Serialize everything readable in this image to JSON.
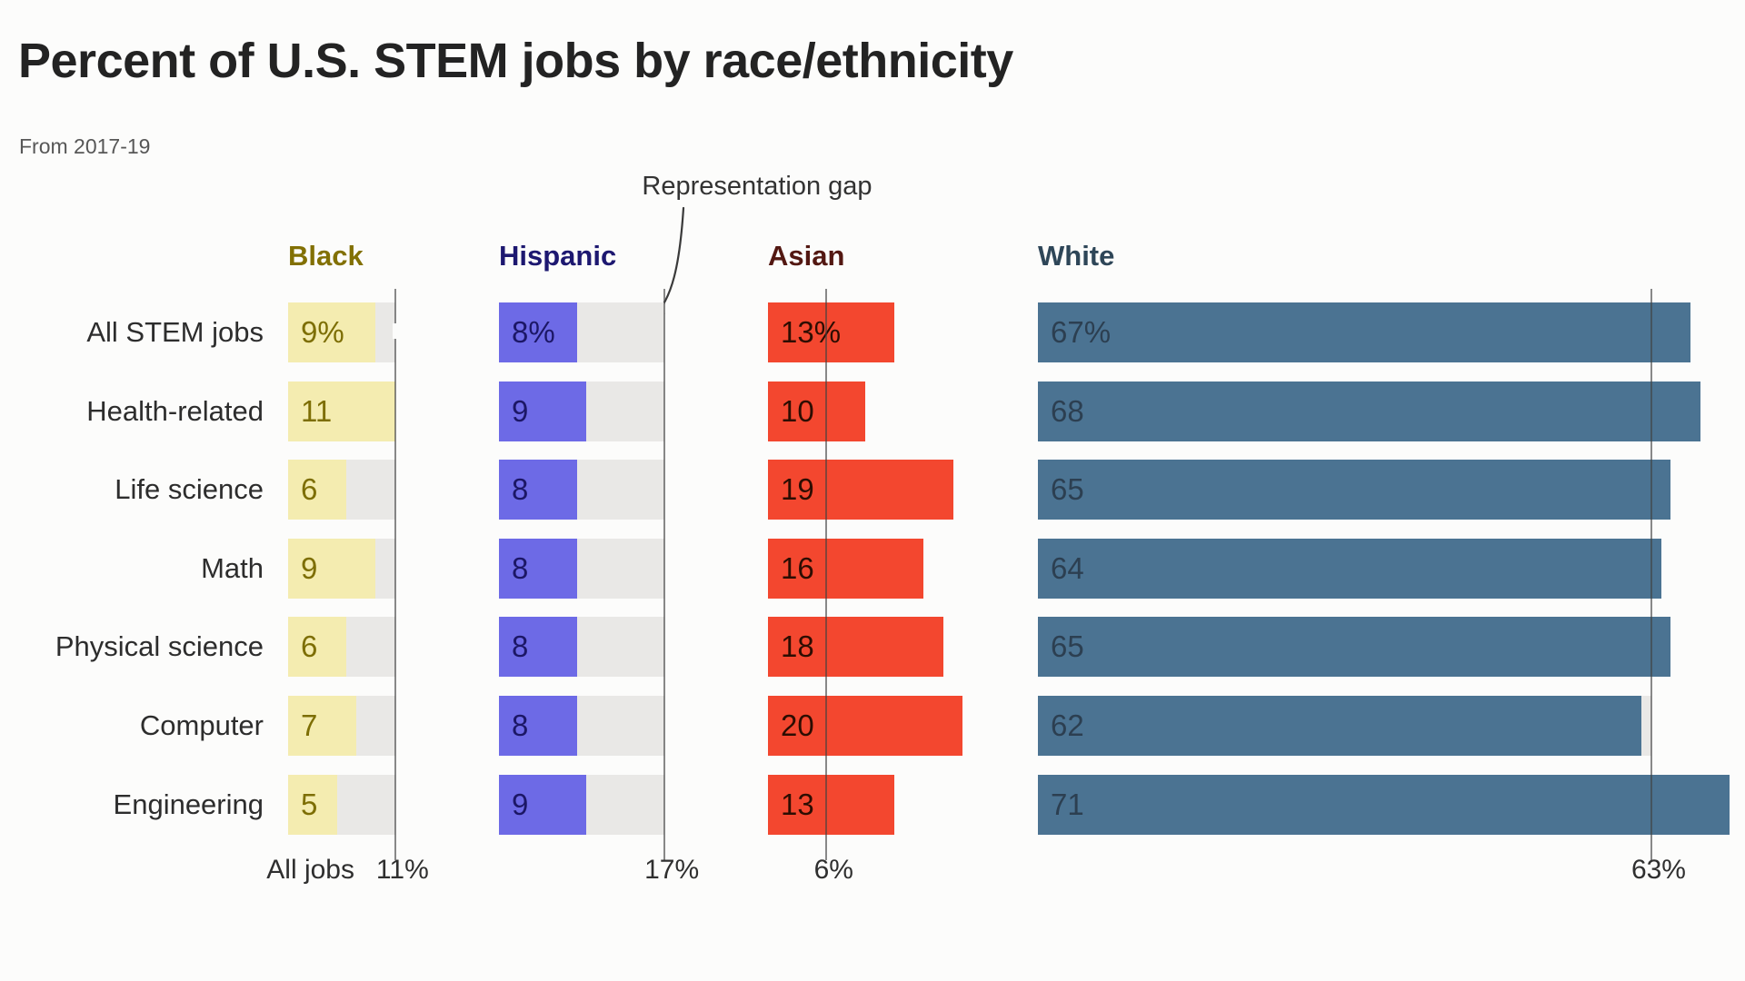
{
  "page": {
    "title": "Percent of U.S. STEM jobs by race/ethnicity",
    "subtitle": "From 2017-19",
    "annotation": "Representation gap",
    "all_jobs_label": "All jobs"
  },
  "chart_data": {
    "type": "bar",
    "orientation": "horizontal",
    "title": "Percent of U.S. STEM jobs by race/ethnicity",
    "subtitle": "From 2017-19",
    "annotation": "Representation gap",
    "legend_position": "column headers above each group",
    "grid": false,
    "categories": [
      "All STEM jobs",
      "Health-related",
      "Life science",
      "Math",
      "Physical science",
      "Computer",
      "Engineering"
    ],
    "benchmark_label": "All jobs",
    "series": [
      {
        "name": "Black",
        "values": [
          9,
          11,
          6,
          9,
          6,
          7,
          5
        ],
        "value_labels": [
          "9%",
          "11",
          "6",
          "9",
          "6",
          "7",
          "5"
        ],
        "all_jobs_benchmark": 11,
        "benchmark_tick": "11%",
        "bar_color": "#f4ecb0",
        "value_text_color": "#7d6e04",
        "header_color": "#827004"
      },
      {
        "name": "Hispanic",
        "values": [
          8,
          9,
          8,
          8,
          8,
          8,
          9
        ],
        "value_labels": [
          "8%",
          "9",
          "8",
          "8",
          "8",
          "8",
          "9"
        ],
        "all_jobs_benchmark": 17,
        "benchmark_tick": "17%",
        "bar_color": "#6d6ae6",
        "value_text_color": "#1c1766",
        "header_color": "#1d1870"
      },
      {
        "name": "Asian",
        "values": [
          13,
          10,
          19,
          16,
          18,
          20,
          13
        ],
        "value_labels": [
          "13%",
          "10",
          "19",
          "16",
          "18",
          "20",
          "13"
        ],
        "all_jobs_benchmark": 6,
        "benchmark_tick": "6%",
        "bar_color": "#f3472f",
        "value_text_color": "#2d0d02",
        "header_color": "#531812"
      },
      {
        "name": "White",
        "values": [
          67,
          68,
          65,
          64,
          65,
          62,
          71
        ],
        "value_labels": [
          "67%",
          "68",
          "65",
          "64",
          "65",
          "62",
          "71"
        ],
        "all_jobs_benchmark": 63,
        "benchmark_tick": "63%",
        "bar_color": "#4b7392",
        "value_text_color": "#2c3f51",
        "header_color": "#2e4658"
      }
    ],
    "track_color": "#e9e8e6",
    "reference_line_color": "rgba(64,64,64,0.62)",
    "background_color": "#fcfcfb"
  }
}
